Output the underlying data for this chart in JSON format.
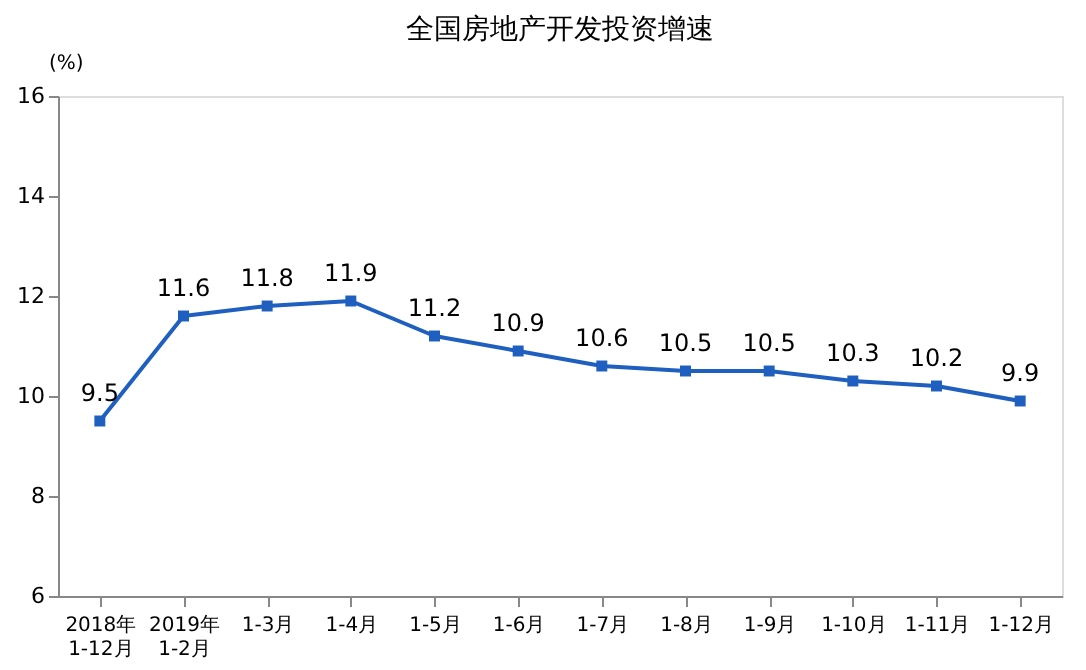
{
  "chart_data": {
    "type": "line",
    "title": "全国房地产开发投资增速",
    "ylabel": "(%)",
    "categories": [
      "2018年\n1-12月",
      "2019年\n1-2月",
      "1-3月",
      "1-4月",
      "1-5月",
      "1-6月",
      "1-7月",
      "1-8月",
      "1-9月",
      "1-10月",
      "1-11月",
      "1-12月"
    ],
    "series": [
      {
        "color": "#1f5fbf",
        "values": [
          9.5,
          11.6,
          11.8,
          11.9,
          11.2,
          10.9,
          10.6,
          10.5,
          10.5,
          10.3,
          10.2,
          9.9
        ]
      }
    ],
    "ylim": [
      6,
      16
    ],
    "yticks": [
      6,
      8,
      10,
      12,
      14,
      16
    ],
    "grid": false,
    "marker": "square",
    "line_style": "solid",
    "data_labels": true
  }
}
